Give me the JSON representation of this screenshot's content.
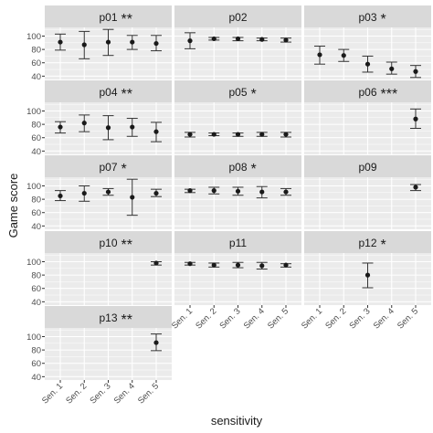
{
  "chart_data": {
    "type": "scatter",
    "subtype": "faceted point + error bars",
    "xlabel": "sensitivity",
    "ylabel": "Game score",
    "categories": [
      "Sen. 1",
      "Sen. 2",
      "Sen. 3",
      "Sen. 4",
      "Sen. 5"
    ],
    "y_ticks": [
      40,
      60,
      80,
      100
    ],
    "ylim": [
      35,
      113
    ],
    "grid": true,
    "panel_background": "#ebebeb",
    "strip_background": "#d9d9d9",
    "grid_color": "#ffffff",
    "point_color": "#1a1a1a",
    "errorbar_color": "#333333",
    "panels": [
      {
        "title": "p01",
        "stars": "**",
        "points": [
          {
            "x": "Sen. 1",
            "y": 91,
            "lo": 79,
            "hi": 103
          },
          {
            "x": "Sen. 2",
            "y": 87,
            "lo": 66,
            "hi": 107
          },
          {
            "x": "Sen. 3",
            "y": 91,
            "lo": 71,
            "hi": 110
          },
          {
            "x": "Sen. 4",
            "y": 91,
            "lo": 80,
            "hi": 101
          },
          {
            "x": "Sen. 5",
            "y": 89,
            "lo": 78,
            "hi": 101
          }
        ]
      },
      {
        "title": "p02",
        "stars": "",
        "points": [
          {
            "x": "Sen. 1",
            "y": 93,
            "lo": 81,
            "hi": 105
          },
          {
            "x": "Sen. 2",
            "y": 96,
            "lo": 94,
            "hi": 98
          },
          {
            "x": "Sen. 3",
            "y": 96,
            "lo": 93,
            "hi": 98
          },
          {
            "x": "Sen. 4",
            "y": 95,
            "lo": 93,
            "hi": 97
          },
          {
            "x": "Sen. 5",
            "y": 94,
            "lo": 91,
            "hi": 97
          }
        ]
      },
      {
        "title": "p03",
        "stars": "*",
        "points": [
          {
            "x": "Sen. 1",
            "y": 72,
            "lo": 58,
            "hi": 85
          },
          {
            "x": "Sen. 2",
            "y": 71,
            "lo": 62,
            "hi": 80
          },
          {
            "x": "Sen. 3",
            "y": 58,
            "lo": 46,
            "hi": 70
          },
          {
            "x": "Sen. 4",
            "y": 51,
            "lo": 43,
            "hi": 61
          },
          {
            "x": "Sen. 5",
            "y": 47,
            "lo": 38,
            "hi": 56
          }
        ]
      },
      {
        "title": "p04",
        "stars": "**",
        "points": [
          {
            "x": "Sen. 1",
            "y": 76,
            "lo": 67,
            "hi": 84
          },
          {
            "x": "Sen. 2",
            "y": 82,
            "lo": 69,
            "hi": 94
          },
          {
            "x": "Sen. 3",
            "y": 75,
            "lo": 57,
            "hi": 93
          },
          {
            "x": "Sen. 4",
            "y": 76,
            "lo": 62,
            "hi": 89
          },
          {
            "x": "Sen. 5",
            "y": 69,
            "lo": 54,
            "hi": 83
          }
        ]
      },
      {
        "title": "p05",
        "stars": "*",
        "points": [
          {
            "x": "Sen. 1",
            "y": 65,
            "lo": 61,
            "hi": 68
          },
          {
            "x": "Sen. 2",
            "y": 65,
            "lo": 63,
            "hi": 67
          },
          {
            "x": "Sen. 3",
            "y": 65,
            "lo": 62,
            "hi": 67
          },
          {
            "x": "Sen. 4",
            "y": 65,
            "lo": 62,
            "hi": 68
          },
          {
            "x": "Sen. 5",
            "y": 65,
            "lo": 61,
            "hi": 68
          }
        ]
      },
      {
        "title": "p06",
        "stars": "***",
        "points": [
          {
            "x": "Sen. 5",
            "y": 88,
            "lo": 74,
            "hi": 103
          }
        ]
      },
      {
        "title": "p07",
        "stars": "*",
        "points": [
          {
            "x": "Sen. 1",
            "y": 85,
            "lo": 78,
            "hi": 93
          },
          {
            "x": "Sen. 2",
            "y": 89,
            "lo": 77,
            "hi": 100
          },
          {
            "x": "Sen. 3",
            "y": 91,
            "lo": 86,
            "hi": 96
          },
          {
            "x": "Sen. 4",
            "y": 83,
            "lo": 56,
            "hi": 110
          },
          {
            "x": "Sen. 5",
            "y": 89,
            "lo": 84,
            "hi": 95
          }
        ]
      },
      {
        "title": "p08",
        "stars": "*",
        "points": [
          {
            "x": "Sen. 1",
            "y": 93,
            "lo": 90,
            "hi": 95
          },
          {
            "x": "Sen. 2",
            "y": 93,
            "lo": 88,
            "hi": 98
          },
          {
            "x": "Sen. 3",
            "y": 92,
            "lo": 86,
            "hi": 98
          },
          {
            "x": "Sen. 4",
            "y": 91,
            "lo": 82,
            "hi": 99
          },
          {
            "x": "Sen. 5",
            "y": 91,
            "lo": 86,
            "hi": 96
          }
        ]
      },
      {
        "title": "p09",
        "stars": "",
        "points": [
          {
            "x": "Sen. 5",
            "y": 98,
            "lo": 93,
            "hi": 102
          }
        ]
      },
      {
        "title": "p10",
        "stars": "**",
        "points": [
          {
            "x": "Sen. 5",
            "y": 98,
            "lo": 95,
            "hi": 100
          }
        ]
      },
      {
        "title": "p11",
        "stars": "",
        "points": [
          {
            "x": "Sen. 1",
            "y": 97,
            "lo": 95,
            "hi": 99
          },
          {
            "x": "Sen. 2",
            "y": 95,
            "lo": 92,
            "hi": 98
          },
          {
            "x": "Sen. 3",
            "y": 95,
            "lo": 91,
            "hi": 99
          },
          {
            "x": "Sen. 4",
            "y": 94,
            "lo": 89,
            "hi": 99
          },
          {
            "x": "Sen. 5",
            "y": 95,
            "lo": 92,
            "hi": 97
          }
        ]
      },
      {
        "title": "p12",
        "stars": "*",
        "points": [
          {
            "x": "Sen. 3",
            "y": 80,
            "lo": 61,
            "hi": 98
          }
        ]
      },
      {
        "title": "p13",
        "stars": "**",
        "points": [
          {
            "x": "Sen. 5",
            "y": 91,
            "lo": 79,
            "hi": 104
          }
        ]
      }
    ]
  }
}
